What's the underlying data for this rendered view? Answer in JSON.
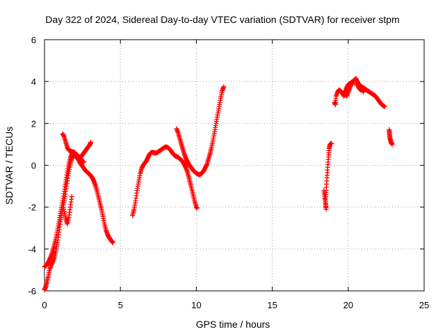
{
  "chart_data": {
    "type": "scatter",
    "title": "Day 322 of 2024, Sidereal Day-to-day VTEC variation (SDTVAR) for receiver stpm",
    "xlabel": "GPS time / hours",
    "ylabel": "SDTVAR / TECUs",
    "xlim": [
      0,
      25
    ],
    "ylim": [
      -6,
      6
    ],
    "xticks": [
      0,
      5,
      10,
      15,
      20,
      25
    ],
    "yticks": [
      -6,
      -4,
      -2,
      0,
      2,
      4,
      6
    ],
    "grid": true,
    "marker": "+",
    "color": "#ff0000",
    "segments": [
      [
        [
          0.0,
          -5.95
        ],
        [
          0.08,
          -5.8
        ],
        [
          0.15,
          -5.6
        ],
        [
          0.25,
          -5.3
        ],
        [
          0.35,
          -4.95
        ],
        [
          0.45,
          -4.75
        ],
        [
          0.55,
          -4.6
        ],
        [
          0.65,
          -4.4
        ],
        [
          0.75,
          -4.1
        ],
        [
          0.85,
          -3.7
        ],
        [
          0.95,
          -3.2
        ],
        [
          1.05,
          -2.7
        ],
        [
          1.15,
          -2.3
        ],
        [
          1.25,
          -1.9
        ],
        [
          1.35,
          -1.5
        ],
        [
          1.45,
          -1.0
        ],
        [
          1.55,
          -0.5
        ],
        [
          1.65,
          -0.1
        ],
        [
          1.75,
          0.2
        ],
        [
          1.85,
          0.4
        ],
        [
          1.95,
          0.5
        ],
        [
          2.05,
          0.45
        ],
        [
          2.15,
          0.35
        ],
        [
          2.25,
          0.25
        ],
        [
          2.35,
          0.1
        ],
        [
          2.45,
          0.0
        ],
        [
          2.55,
          -0.1
        ],
        [
          2.65,
          -0.2
        ],
        [
          2.75,
          -0.3
        ],
        [
          2.85,
          -0.35
        ],
        [
          2.95,
          -0.42
        ],
        [
          3.05,
          -0.5
        ],
        [
          3.15,
          -0.6
        ],
        [
          3.25,
          -0.75
        ],
        [
          3.35,
          -0.95
        ],
        [
          3.45,
          -1.2
        ],
        [
          3.55,
          -1.5
        ],
        [
          3.65,
          -1.8
        ],
        [
          3.75,
          -2.1
        ],
        [
          3.85,
          -2.45
        ],
        [
          3.95,
          -2.8
        ],
        [
          4.05,
          -3.1
        ],
        [
          4.15,
          -3.3
        ],
        [
          4.25,
          -3.45
        ],
        [
          4.35,
          -3.55
        ],
        [
          4.45,
          -3.65
        ],
        [
          4.5,
          -3.7
        ]
      ],
      [
        [
          0.0,
          -4.85
        ],
        [
          0.1,
          -4.8
        ],
        [
          0.2,
          -4.7
        ],
        [
          0.3,
          -4.55
        ],
        [
          0.4,
          -4.4
        ],
        [
          0.5,
          -4.2
        ],
        [
          0.6,
          -3.95
        ],
        [
          0.7,
          -3.65
        ],
        [
          0.8,
          -3.3
        ],
        [
          0.9,
          -2.9
        ],
        [
          1.0,
          -2.5
        ],
        [
          1.1,
          -2.1
        ],
        [
          1.2,
          -1.7
        ],
        [
          1.3,
          -1.25
        ],
        [
          1.4,
          -0.8
        ],
        [
          1.5,
          -0.35
        ],
        [
          1.6,
          0.05
        ],
        [
          1.7,
          0.35
        ],
        [
          1.8,
          0.55
        ],
        [
          1.9,
          0.65
        ],
        [
          2.0,
          0.6
        ],
        [
          2.1,
          0.5
        ],
        [
          2.2,
          0.4
        ],
        [
          2.3,
          0.35
        ],
        [
          2.4,
          0.4
        ],
        [
          2.5,
          0.5
        ],
        [
          2.6,
          0.6
        ],
        [
          2.7,
          0.7
        ],
        [
          2.8,
          0.8
        ],
        [
          2.9,
          0.9
        ],
        [
          3.0,
          1.0
        ],
        [
          3.05,
          1.1
        ]
      ],
      [
        [
          1.2,
          1.5
        ],
        [
          1.3,
          1.35
        ],
        [
          1.4,
          1.1
        ],
        [
          1.5,
          0.85
        ],
        [
          1.6,
          0.72
        ],
        [
          1.7,
          0.68
        ],
        [
          1.8,
          0.66
        ],
        [
          1.9,
          0.62
        ],
        [
          2.0,
          0.58
        ],
        [
          2.1,
          0.52
        ],
        [
          2.2,
          0.45
        ],
        [
          2.3,
          0.4
        ],
        [
          2.4,
          0.3
        ],
        [
          2.5,
          0.2
        ],
        [
          2.6,
          0.15
        ]
      ],
      [
        [
          1.2,
          -1.8
        ],
        [
          1.3,
          -2.2
        ],
        [
          1.4,
          -2.55
        ],
        [
          1.5,
          -2.8
        ],
        [
          1.6,
          -2.5
        ],
        [
          1.7,
          -2.0
        ],
        [
          1.8,
          -1.5
        ]
      ],
      [
        [
          5.8,
          -2.4
        ],
        [
          5.9,
          -2.1
        ],
        [
          6.0,
          -1.7
        ],
        [
          6.1,
          -1.2
        ],
        [
          6.2,
          -0.8
        ],
        [
          6.3,
          -0.4
        ],
        [
          6.4,
          -0.15
        ],
        [
          6.5,
          0.0
        ],
        [
          6.6,
          0.1
        ],
        [
          6.7,
          0.2
        ],
        [
          6.8,
          0.35
        ],
        [
          6.9,
          0.5
        ],
        [
          7.0,
          0.6
        ],
        [
          7.1,
          0.62
        ],
        [
          7.2,
          0.6
        ],
        [
          7.3,
          0.58
        ],
        [
          7.4,
          0.6
        ],
        [
          7.5,
          0.65
        ],
        [
          7.6,
          0.7
        ],
        [
          7.7,
          0.75
        ],
        [
          7.8,
          0.8
        ],
        [
          7.9,
          0.85
        ],
        [
          8.0,
          0.88
        ],
        [
          8.1,
          0.85
        ],
        [
          8.2,
          0.8
        ],
        [
          8.3,
          0.72
        ],
        [
          8.4,
          0.62
        ],
        [
          8.5,
          0.52
        ],
        [
          8.6,
          0.45
        ],
        [
          8.7,
          0.42
        ],
        [
          8.8,
          0.38
        ],
        [
          8.9,
          0.32
        ],
        [
          9.0,
          0.25
        ],
        [
          9.1,
          0.18
        ],
        [
          9.2,
          0.05
        ],
        [
          9.3,
          -0.1
        ],
        [
          9.4,
          -0.3
        ],
        [
          9.5,
          -0.55
        ],
        [
          9.6,
          -0.85
        ],
        [
          9.7,
          -1.15
        ],
        [
          9.8,
          -1.45
        ],
        [
          9.9,
          -1.75
        ],
        [
          10.0,
          -2.0
        ],
        [
          10.05,
          -2.05
        ]
      ],
      [
        [
          8.7,
          1.75
        ],
        [
          8.8,
          1.55
        ],
        [
          8.9,
          1.3
        ],
        [
          9.0,
          1.05
        ],
        [
          9.1,
          0.8
        ],
        [
          9.2,
          0.55
        ],
        [
          9.3,
          0.35
        ],
        [
          9.4,
          0.2
        ],
        [
          9.5,
          0.05
        ],
        [
          9.6,
          -0.05
        ],
        [
          9.7,
          -0.15
        ],
        [
          9.8,
          -0.25
        ],
        [
          9.9,
          -0.32
        ],
        [
          10.0,
          -0.38
        ],
        [
          10.1,
          -0.42
        ],
        [
          10.2,
          -0.45
        ],
        [
          10.3,
          -0.42
        ],
        [
          10.4,
          -0.35
        ],
        [
          10.5,
          -0.25
        ],
        [
          10.6,
          -0.1
        ],
        [
          10.7,
          0.05
        ],
        [
          10.8,
          0.3
        ],
        [
          10.9,
          0.55
        ],
        [
          11.0,
          0.85
        ],
        [
          11.1,
          1.2
        ],
        [
          11.2,
          1.6
        ],
        [
          11.3,
          2.0
        ],
        [
          11.4,
          2.4
        ],
        [
          11.5,
          2.8
        ],
        [
          11.6,
          3.2
        ],
        [
          11.7,
          3.55
        ],
        [
          11.8,
          3.75
        ]
      ],
      [
        [
          18.4,
          -1.2
        ],
        [
          18.45,
          -1.5
        ],
        [
          18.5,
          -1.8
        ],
        [
          18.55,
          -2.1
        ],
        [
          18.5,
          -1.6
        ],
        [
          18.55,
          -1.2
        ],
        [
          18.6,
          -0.6
        ],
        [
          18.65,
          -0.1
        ],
        [
          18.7,
          0.4
        ],
        [
          18.75,
          0.8
        ],
        [
          18.8,
          1.0
        ],
        [
          18.9,
          1.05
        ]
      ],
      [
        [
          19.1,
          3.0
        ],
        [
          19.15,
          2.9
        ],
        [
          19.2,
          3.3
        ],
        [
          19.3,
          3.5
        ],
        [
          19.4,
          3.6
        ],
        [
          19.5,
          3.55
        ],
        [
          19.6,
          3.45
        ],
        [
          19.7,
          3.35
        ],
        [
          19.8,
          3.5
        ],
        [
          19.9,
          3.7
        ],
        [
          20.0,
          3.85
        ],
        [
          20.1,
          3.9
        ],
        [
          20.2,
          3.95
        ],
        [
          20.3,
          4.0
        ],
        [
          20.4,
          4.05
        ],
        [
          20.5,
          4.15
        ],
        [
          20.6,
          4.0
        ],
        [
          20.7,
          3.85
        ],
        [
          20.8,
          3.8
        ],
        [
          20.9,
          3.75
        ],
        [
          21.0,
          3.7
        ],
        [
          21.1,
          3.65
        ],
        [
          21.2,
          3.6
        ],
        [
          21.3,
          3.55
        ],
        [
          21.4,
          3.5
        ],
        [
          21.5,
          3.45
        ],
        [
          21.6,
          3.4
        ],
        [
          21.7,
          3.35
        ],
        [
          21.8,
          3.3
        ],
        [
          21.9,
          3.2
        ],
        [
          22.0,
          3.1
        ],
        [
          22.1,
          3.0
        ],
        [
          22.2,
          2.9
        ],
        [
          22.3,
          2.85
        ],
        [
          22.4,
          2.8
        ]
      ],
      [
        [
          19.7,
          3.3
        ],
        [
          19.8,
          3.4
        ],
        [
          19.9,
          3.3
        ],
        [
          20.0,
          3.5
        ],
        [
          20.1,
          3.7
        ],
        [
          20.2,
          3.9
        ],
        [
          20.6,
          3.9
        ],
        [
          20.7,
          3.7
        ],
        [
          20.8,
          3.6
        ],
        [
          20.9,
          3.65
        ],
        [
          21.0,
          3.5
        ]
      ],
      [
        [
          22.7,
          1.7
        ],
        [
          22.72,
          1.5
        ],
        [
          22.75,
          1.3
        ],
        [
          22.8,
          1.15
        ],
        [
          22.85,
          1.05
        ],
        [
          22.9,
          1.0
        ]
      ]
    ]
  }
}
